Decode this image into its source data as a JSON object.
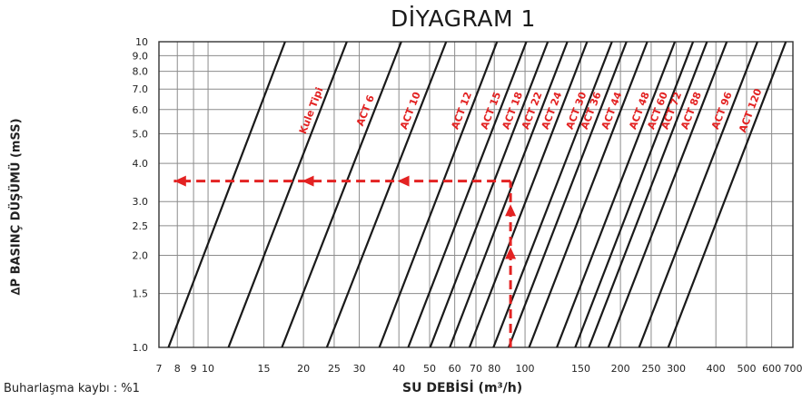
{
  "title": "DİYAGRAM 1",
  "footnote": "Buharlaşma kaybı : %1",
  "colors": {
    "curve": "#1a1a1a",
    "grid": "#8c8c8c",
    "annotation": "#e32222"
  },
  "chart_data": {
    "type": "line",
    "title": "DİYAGRAM 1",
    "xlabel": "SU DEBİSİ (m³/h)",
    "ylabel": "∆P BASINÇ DÜŞÜMÜ (mSS)",
    "x_scale": "log",
    "y_scale": "log",
    "xlim": [
      7,
      700
    ],
    "ylim": [
      1.0,
      10
    ],
    "x_ticks": [
      7,
      8,
      9,
      10,
      15,
      20,
      25,
      30,
      40,
      50,
      60,
      70,
      80,
      100,
      150,
      200,
      250,
      300,
      400,
      500,
      600,
      700
    ],
    "x_tick_labels": [
      "7",
      "8",
      "9",
      "10",
      "15",
      "20",
      "25",
      "30",
      "40",
      "50",
      "60",
      "70",
      "80",
      "100",
      "150",
      "200",
      "250",
      "300",
      "400",
      "500",
      "600",
      "700"
    ],
    "y_ticks": [
      1.0,
      1.5,
      2.0,
      2.5,
      3.0,
      4.0,
      5.0,
      6.0,
      7.0,
      8.0,
      9.0,
      10
    ],
    "y_tick_labels": [
      "1.0",
      "1.5",
      "2.0",
      "2.5",
      "3.0",
      "4.0",
      "5.0",
      "6.0",
      "7.0",
      "8.0",
      "9.0",
      "10"
    ],
    "grid": true,
    "series": [
      {
        "name": "",
        "points": [
          [
            7.5,
            1.0
          ],
          [
            17.5,
            10
          ]
        ]
      },
      {
        "name": "Kule Tipi",
        "points": [
          [
            11.6,
            1.0
          ],
          [
            27.4,
            10
          ]
        ]
      },
      {
        "name": "ACT 6",
        "points": [
          [
            17.1,
            1.0
          ],
          [
            40.7,
            10
          ]
        ]
      },
      {
        "name": "ACT 10",
        "points": [
          [
            23.7,
            1.0
          ],
          [
            56.4,
            10
          ]
        ]
      },
      {
        "name": "ACT 12",
        "points": [
          [
            34.7,
            1.0
          ],
          [
            81.6,
            10
          ]
        ]
      },
      {
        "name": "ACT 15",
        "points": [
          [
            42.8,
            1.0
          ],
          [
            101,
            10
          ]
        ]
      },
      {
        "name": "ACT 18",
        "points": [
          [
            50.2,
            1.0
          ],
          [
            118,
            10
          ]
        ]
      },
      {
        "name": "ACT 22",
        "points": [
          [
            57.9,
            1.0
          ],
          [
            136,
            10
          ]
        ]
      },
      {
        "name": "ACT 24",
        "points": [
          [
            66.8,
            1.0
          ],
          [
            157,
            10
          ]
        ]
      },
      {
        "name": "ACT 30",
        "points": [
          [
            79.5,
            1.0
          ],
          [
            188,
            10
          ]
        ]
      },
      {
        "name": "ACT 36",
        "points": [
          [
            88.8,
            1.0
          ],
          [
            209,
            10
          ]
        ]
      },
      {
        "name": "ACT 44",
        "points": [
          [
            103,
            1.0
          ],
          [
            243,
            10
          ]
        ]
      },
      {
        "name": "ACT 48",
        "points": [
          [
            126,
            1.0
          ],
          [
            297,
            10
          ]
        ]
      },
      {
        "name": "ACT 60",
        "points": [
          [
            144,
            1.0
          ],
          [
            339,
            10
          ]
        ]
      },
      {
        "name": "ACT 72",
        "points": [
          [
            159,
            1.0
          ],
          [
            375,
            10
          ]
        ]
      },
      {
        "name": "ACT 88",
        "points": [
          [
            183,
            1.0
          ],
          [
            433,
            10
          ]
        ]
      },
      {
        "name": "ACT 96",
        "points": [
          [
            229,
            1.0
          ],
          [
            541,
            10
          ]
        ]
      },
      {
        "name": "ACT 120",
        "points": [
          [
            283,
            1.0
          ],
          [
            665,
            10
          ]
        ]
      }
    ],
    "annotation": {
      "x": 90,
      "y": 3.5,
      "arrow_markers_x": [
        20,
        40,
        90
      ],
      "arrow_markers_y": [
        2.0,
        3.0
      ]
    }
  }
}
